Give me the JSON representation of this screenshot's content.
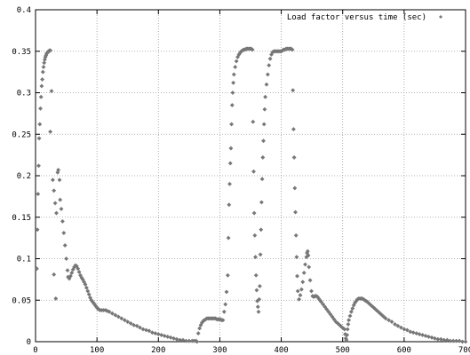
{
  "chart_data": {
    "type": "scatter",
    "title": "",
    "xlabel": "",
    "ylabel": "",
    "xlim": [
      0,
      700
    ],
    "ylim": [
      0,
      0.4
    ],
    "x_ticks": [
      0,
      100,
      200,
      300,
      400,
      500,
      600,
      700
    ],
    "y_ticks": [
      0,
      0.05,
      0.1,
      0.15,
      0.2,
      0.25,
      0.3,
      0.35,
      0.4
    ],
    "x_tick_labels": [
      "0",
      "100",
      "200",
      "300",
      "400",
      "500",
      "600",
      "700"
    ],
    "y_tick_labels": [
      "0",
      "0.05",
      "0.1",
      "0.15",
      "0.2",
      "0.25",
      "0.3",
      "0.35",
      "0.4"
    ],
    "grid": true,
    "grid_style": "dotted",
    "legend_position": "top-right",
    "series": [
      {
        "name": "Load factor versus time (sec)",
        "marker": "diamond",
        "color": "#777777",
        "points": [
          [
            2,
            0.088
          ],
          [
            3,
            0.135
          ],
          [
            4,
            0.178
          ],
          [
            5,
            0.212
          ],
          [
            6,
            0.245
          ],
          [
            7,
            0.262
          ],
          [
            8,
            0.281
          ],
          [
            9,
            0.295
          ],
          [
            10,
            0.308
          ],
          [
            11,
            0.316
          ],
          [
            12,
            0.325
          ],
          [
            13,
            0.331
          ],
          [
            14,
            0.336
          ],
          [
            15,
            0.34
          ],
          [
            16,
            0.343
          ],
          [
            17,
            0.345
          ],
          [
            18,
            0.347
          ],
          [
            19,
            0.348
          ],
          [
            20,
            0.349
          ],
          [
            21,
            0.35
          ],
          [
            22,
            0.35
          ],
          [
            23,
            0.351
          ],
          [
            24,
            0.351
          ],
          [
            24,
            0.253
          ],
          [
            26,
            0.302
          ],
          [
            28,
            0.195
          ],
          [
            30,
            0.182
          ],
          [
            32,
            0.167
          ],
          [
            34,
            0.155
          ],
          [
            36,
            0.204
          ],
          [
            37,
            0.207
          ],
          [
            39,
            0.195
          ],
          [
            40,
            0.171
          ],
          [
            42,
            0.16
          ],
          [
            44,
            0.145
          ],
          [
            46,
            0.131
          ],
          [
            48,
            0.116
          ],
          [
            50,
            0.1
          ],
          [
            52,
            0.086
          ],
          [
            33,
            0.052
          ],
          [
            30,
            0.081
          ],
          [
            53,
            0.078
          ],
          [
            55,
            0.076
          ],
          [
            57,
            0.079
          ],
          [
            59,
            0.083
          ],
          [
            61,
            0.087
          ],
          [
            63,
            0.09
          ],
          [
            65,
            0.092
          ],
          [
            67,
            0.091
          ],
          [
            69,
            0.088
          ],
          [
            71,
            0.084
          ],
          [
            73,
            0.08
          ],
          [
            75,
            0.077
          ],
          [
            77,
            0.075
          ],
          [
            79,
            0.072
          ],
          [
            81,
            0.069
          ],
          [
            83,
            0.065
          ],
          [
            85,
            0.061
          ],
          [
            87,
            0.057
          ],
          [
            89,
            0.053
          ],
          [
            91,
            0.05
          ],
          [
            93,
            0.048
          ],
          [
            95,
            0.046
          ],
          [
            97,
            0.044
          ],
          [
            99,
            0.042
          ],
          [
            101,
            0.04
          ],
          [
            103,
            0.039
          ],
          [
            105,
            0.038
          ],
          [
            108,
            0.038
          ],
          [
            111,
            0.038
          ],
          [
            114,
            0.038
          ],
          [
            117,
            0.037
          ],
          [
            120,
            0.036
          ],
          [
            125,
            0.034
          ],
          [
            130,
            0.032
          ],
          [
            135,
            0.03
          ],
          [
            140,
            0.028
          ],
          [
            145,
            0.026
          ],
          [
            150,
            0.024
          ],
          [
            155,
            0.022
          ],
          [
            160,
            0.02
          ],
          [
            165,
            0.019
          ],
          [
            170,
            0.017
          ],
          [
            175,
            0.015
          ],
          [
            180,
            0.014
          ],
          [
            185,
            0.013
          ],
          [
            190,
            0.011
          ],
          [
            195,
            0.01
          ],
          [
            200,
            0.009
          ],
          [
            205,
            0.008
          ],
          [
            210,
            0.007
          ],
          [
            215,
            0.006
          ],
          [
            220,
            0.005
          ],
          [
            225,
            0.004
          ],
          [
            230,
            0.003
          ],
          [
            235,
            0.002
          ],
          [
            240,
            0.002
          ],
          [
            245,
            0.001
          ],
          [
            250,
            0.001
          ],
          [
            255,
            0.001
          ],
          [
            258,
            0.001
          ],
          [
            261,
            0.001
          ],
          [
            263,
            0.0
          ],
          [
            265,
            0.01
          ],
          [
            267,
            0.016
          ],
          [
            269,
            0.02
          ],
          [
            271,
            0.023
          ],
          [
            273,
            0.025
          ],
          [
            275,
            0.026
          ],
          [
            277,
            0.027
          ],
          [
            279,
            0.028
          ],
          [
            281,
            0.028
          ],
          [
            283,
            0.028
          ],
          [
            285,
            0.028
          ],
          [
            287,
            0.028
          ],
          [
            289,
            0.028
          ],
          [
            291,
            0.028
          ],
          [
            293,
            0.028
          ],
          [
            295,
            0.027
          ],
          [
            297,
            0.027
          ],
          [
            299,
            0.027
          ],
          [
            301,
            0.027
          ],
          [
            303,
            0.026
          ],
          [
            305,
            0.026
          ],
          [
            307,
            0.036
          ],
          [
            309,
            0.045
          ],
          [
            311,
            0.06
          ],
          [
            313,
            0.08
          ],
          [
            314,
            0.125
          ],
          [
            315,
            0.165
          ],
          [
            316,
            0.19
          ],
          [
            317,
            0.215
          ],
          [
            318,
            0.233
          ],
          [
            319,
            0.262
          ],
          [
            320,
            0.285
          ],
          [
            321,
            0.3
          ],
          [
            322,
            0.312
          ],
          [
            323,
            0.322
          ],
          [
            325,
            0.331
          ],
          [
            327,
            0.338
          ],
          [
            329,
            0.343
          ],
          [
            331,
            0.346
          ],
          [
            333,
            0.348
          ],
          [
            335,
            0.35
          ],
          [
            337,
            0.351
          ],
          [
            339,
            0.352
          ],
          [
            341,
            0.352
          ],
          [
            343,
            0.353
          ],
          [
            345,
            0.353
          ],
          [
            347,
            0.353
          ],
          [
            349,
            0.353
          ],
          [
            351,
            0.353
          ],
          [
            353,
            0.352
          ],
          [
            354,
            0.265
          ],
          [
            355,
            0.205
          ],
          [
            356,
            0.155
          ],
          [
            357,
            0.128
          ],
          [
            358,
            0.102
          ],
          [
            359,
            0.08
          ],
          [
            360,
            0.062
          ],
          [
            361,
            0.049
          ],
          [
            362,
            0.042
          ],
          [
            363,
            0.036
          ],
          [
            364,
            0.051
          ],
          [
            365,
            0.067
          ],
          [
            366,
            0.105
          ],
          [
            367,
            0.135
          ],
          [
            368,
            0.168
          ],
          [
            369,
            0.196
          ],
          [
            370,
            0.222
          ],
          [
            371,
            0.242
          ],
          [
            372,
            0.262
          ],
          [
            373,
            0.28
          ],
          [
            374,
            0.295
          ],
          [
            376,
            0.31
          ],
          [
            378,
            0.322
          ],
          [
            380,
            0.333
          ],
          [
            382,
            0.341
          ],
          [
            384,
            0.346
          ],
          [
            386,
            0.349
          ],
          [
            388,
            0.35
          ],
          [
            390,
            0.35
          ],
          [
            392,
            0.35
          ],
          [
            394,
            0.35
          ],
          [
            396,
            0.35
          ],
          [
            398,
            0.35
          ],
          [
            400,
            0.35
          ],
          [
            402,
            0.351
          ],
          [
            404,
            0.352
          ],
          [
            406,
            0.352
          ],
          [
            408,
            0.353
          ],
          [
            410,
            0.353
          ],
          [
            412,
            0.353
          ],
          [
            414,
            0.353
          ],
          [
            416,
            0.353
          ],
          [
            418,
            0.352
          ],
          [
            419,
            0.303
          ],
          [
            420,
            0.256
          ],
          [
            421,
            0.222
          ],
          [
            422,
            0.185
          ],
          [
            423,
            0.156
          ],
          [
            424,
            0.128
          ],
          [
            425,
            0.102
          ],
          [
            426,
            0.079
          ],
          [
            427,
            0.061
          ],
          [
            429,
            0.051
          ],
          [
            431,
            0.056
          ],
          [
            433,
            0.063
          ],
          [
            435,
            0.072
          ],
          [
            437,
            0.083
          ],
          [
            439,
            0.093
          ],
          [
            441,
            0.102
          ],
          [
            442,
            0.107
          ],
          [
            443,
            0.109
          ],
          [
            444,
            0.104
          ],
          [
            445,
            0.09
          ],
          [
            447,
            0.074
          ],
          [
            449,
            0.061
          ],
          [
            451,
            0.055
          ],
          [
            453,
            0.054
          ],
          [
            455,
            0.055
          ],
          [
            457,
            0.055
          ],
          [
            459,
            0.054
          ],
          [
            461,
            0.052
          ],
          [
            463,
            0.05
          ],
          [
            465,
            0.048
          ],
          [
            468,
            0.045
          ],
          [
            471,
            0.042
          ],
          [
            474,
            0.039
          ],
          [
            477,
            0.036
          ],
          [
            480,
            0.033
          ],
          [
            483,
            0.03
          ],
          [
            486,
            0.027
          ],
          [
            489,
            0.024
          ],
          [
            492,
            0.022
          ],
          [
            495,
            0.02
          ],
          [
            498,
            0.018
          ],
          [
            501,
            0.016
          ],
          [
            503,
            0.015
          ],
          [
            504,
            0.009
          ],
          [
            505,
            0.004
          ],
          [
            506,
            0.002
          ],
          [
            507,
            0.008
          ],
          [
            508,
            0.015
          ],
          [
            509,
            0.021
          ],
          [
            510,
            0.026
          ],
          [
            512,
            0.031
          ],
          [
            514,
            0.036
          ],
          [
            516,
            0.04
          ],
          [
            518,
            0.044
          ],
          [
            520,
            0.047
          ],
          [
            522,
            0.049
          ],
          [
            524,
            0.051
          ],
          [
            526,
            0.052
          ],
          [
            528,
            0.052
          ],
          [
            530,
            0.052
          ],
          [
            532,
            0.052
          ],
          [
            534,
            0.051
          ],
          [
            536,
            0.05
          ],
          [
            538,
            0.049
          ],
          [
            540,
            0.048
          ],
          [
            543,
            0.046
          ],
          [
            546,
            0.044
          ],
          [
            549,
            0.042
          ],
          [
            552,
            0.04
          ],
          [
            555,
            0.038
          ],
          [
            558,
            0.036
          ],
          [
            561,
            0.034
          ],
          [
            564,
            0.032
          ],
          [
            567,
            0.03
          ],
          [
            570,
            0.028
          ],
          [
            575,
            0.026
          ],
          [
            580,
            0.024
          ],
          [
            585,
            0.021
          ],
          [
            590,
            0.019
          ],
          [
            595,
            0.017
          ],
          [
            600,
            0.015
          ],
          [
            605,
            0.014
          ],
          [
            610,
            0.012
          ],
          [
            615,
            0.011
          ],
          [
            620,
            0.01
          ],
          [
            625,
            0.009
          ],
          [
            630,
            0.008
          ],
          [
            635,
            0.007
          ],
          [
            640,
            0.006
          ],
          [
            645,
            0.005
          ],
          [
            650,
            0.004
          ],
          [
            655,
            0.003
          ],
          [
            660,
            0.003
          ],
          [
            665,
            0.002
          ],
          [
            670,
            0.002
          ],
          [
            675,
            0.001
          ],
          [
            680,
            0.001
          ],
          [
            685,
            0.001
          ],
          [
            690,
            0.001
          ],
          [
            695,
            0.0
          ],
          [
            700,
            0.0
          ]
        ]
      }
    ]
  }
}
